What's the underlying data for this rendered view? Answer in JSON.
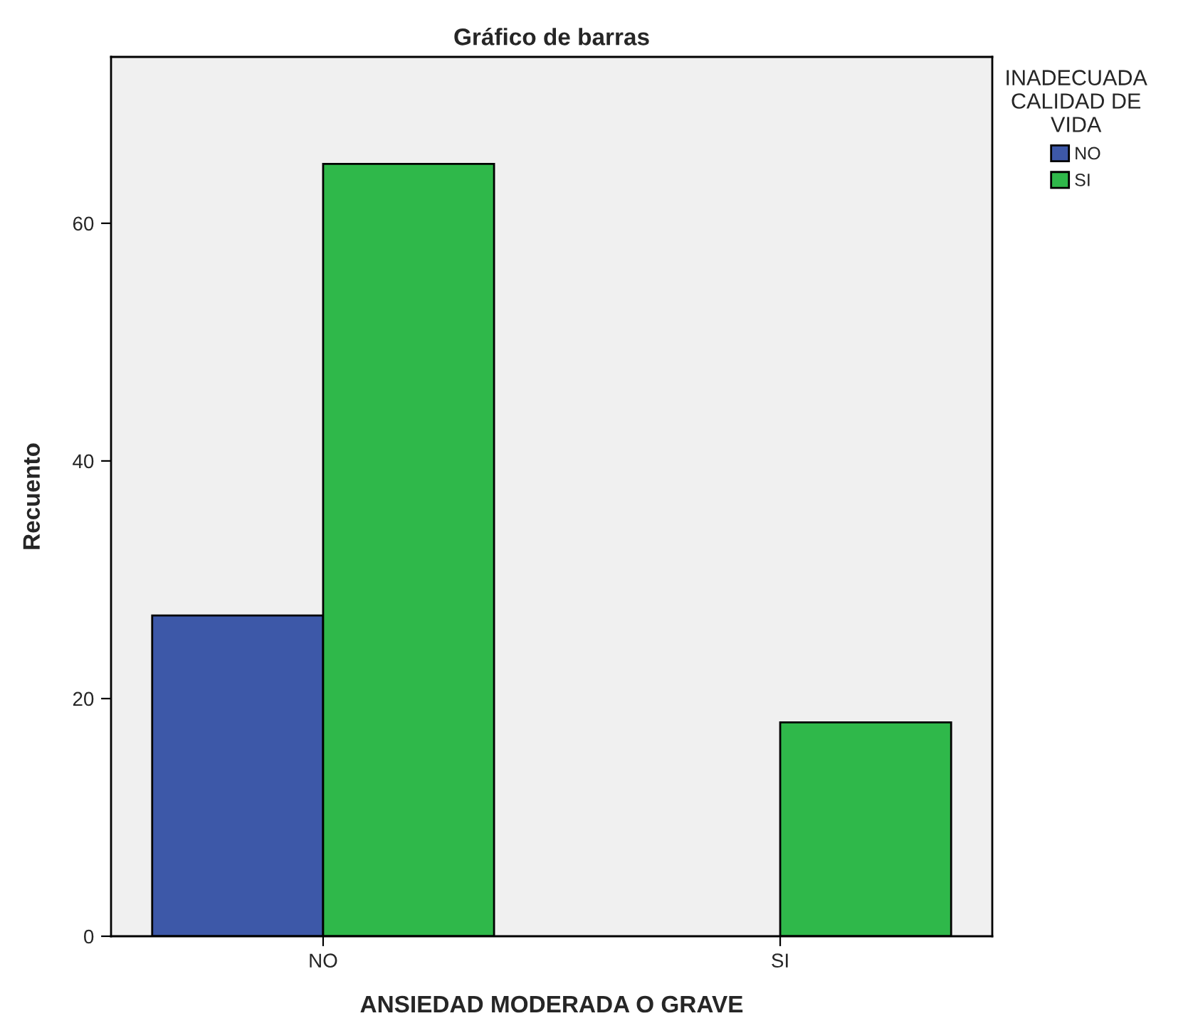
{
  "chart_data": {
    "type": "bar",
    "title": "Gráfico de barras",
    "xlabel": "ANSIEDAD MODERADA O GRAVE",
    "ylabel": "Recuento",
    "legend_title": "INADECUADA\nCALIDAD DE\nVIDA",
    "categories": [
      "NO",
      "SI"
    ],
    "series": [
      {
        "name": "NO",
        "color": "#3d58a8",
        "values": [
          27,
          null
        ]
      },
      {
        "name": "SI",
        "color": "#2fb84a",
        "values": [
          65,
          18
        ]
      }
    ],
    "ylim": [
      0,
      74
    ],
    "yticks": [
      0,
      20,
      40,
      60
    ],
    "grid": false,
    "legend": "top right"
  }
}
